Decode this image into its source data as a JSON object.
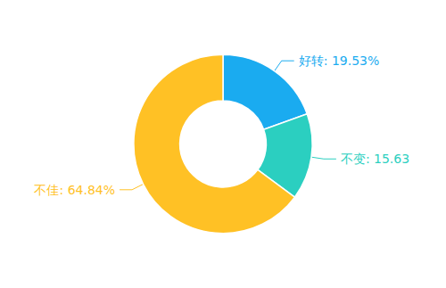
{
  "chart_data": {
    "type": "donut",
    "categories": [
      "好转",
      "不变",
      "不佳"
    ],
    "values": [
      19.53,
      15.63,
      64.84
    ],
    "value_labels": [
      "好转: 19.53%",
      "不变: 15.63",
      "不佳: 64.84%"
    ],
    "colors": [
      "#1AABF0",
      "#2BCFC0",
      "#FFC125"
    ],
    "data_labels": true,
    "legend": false
  }
}
